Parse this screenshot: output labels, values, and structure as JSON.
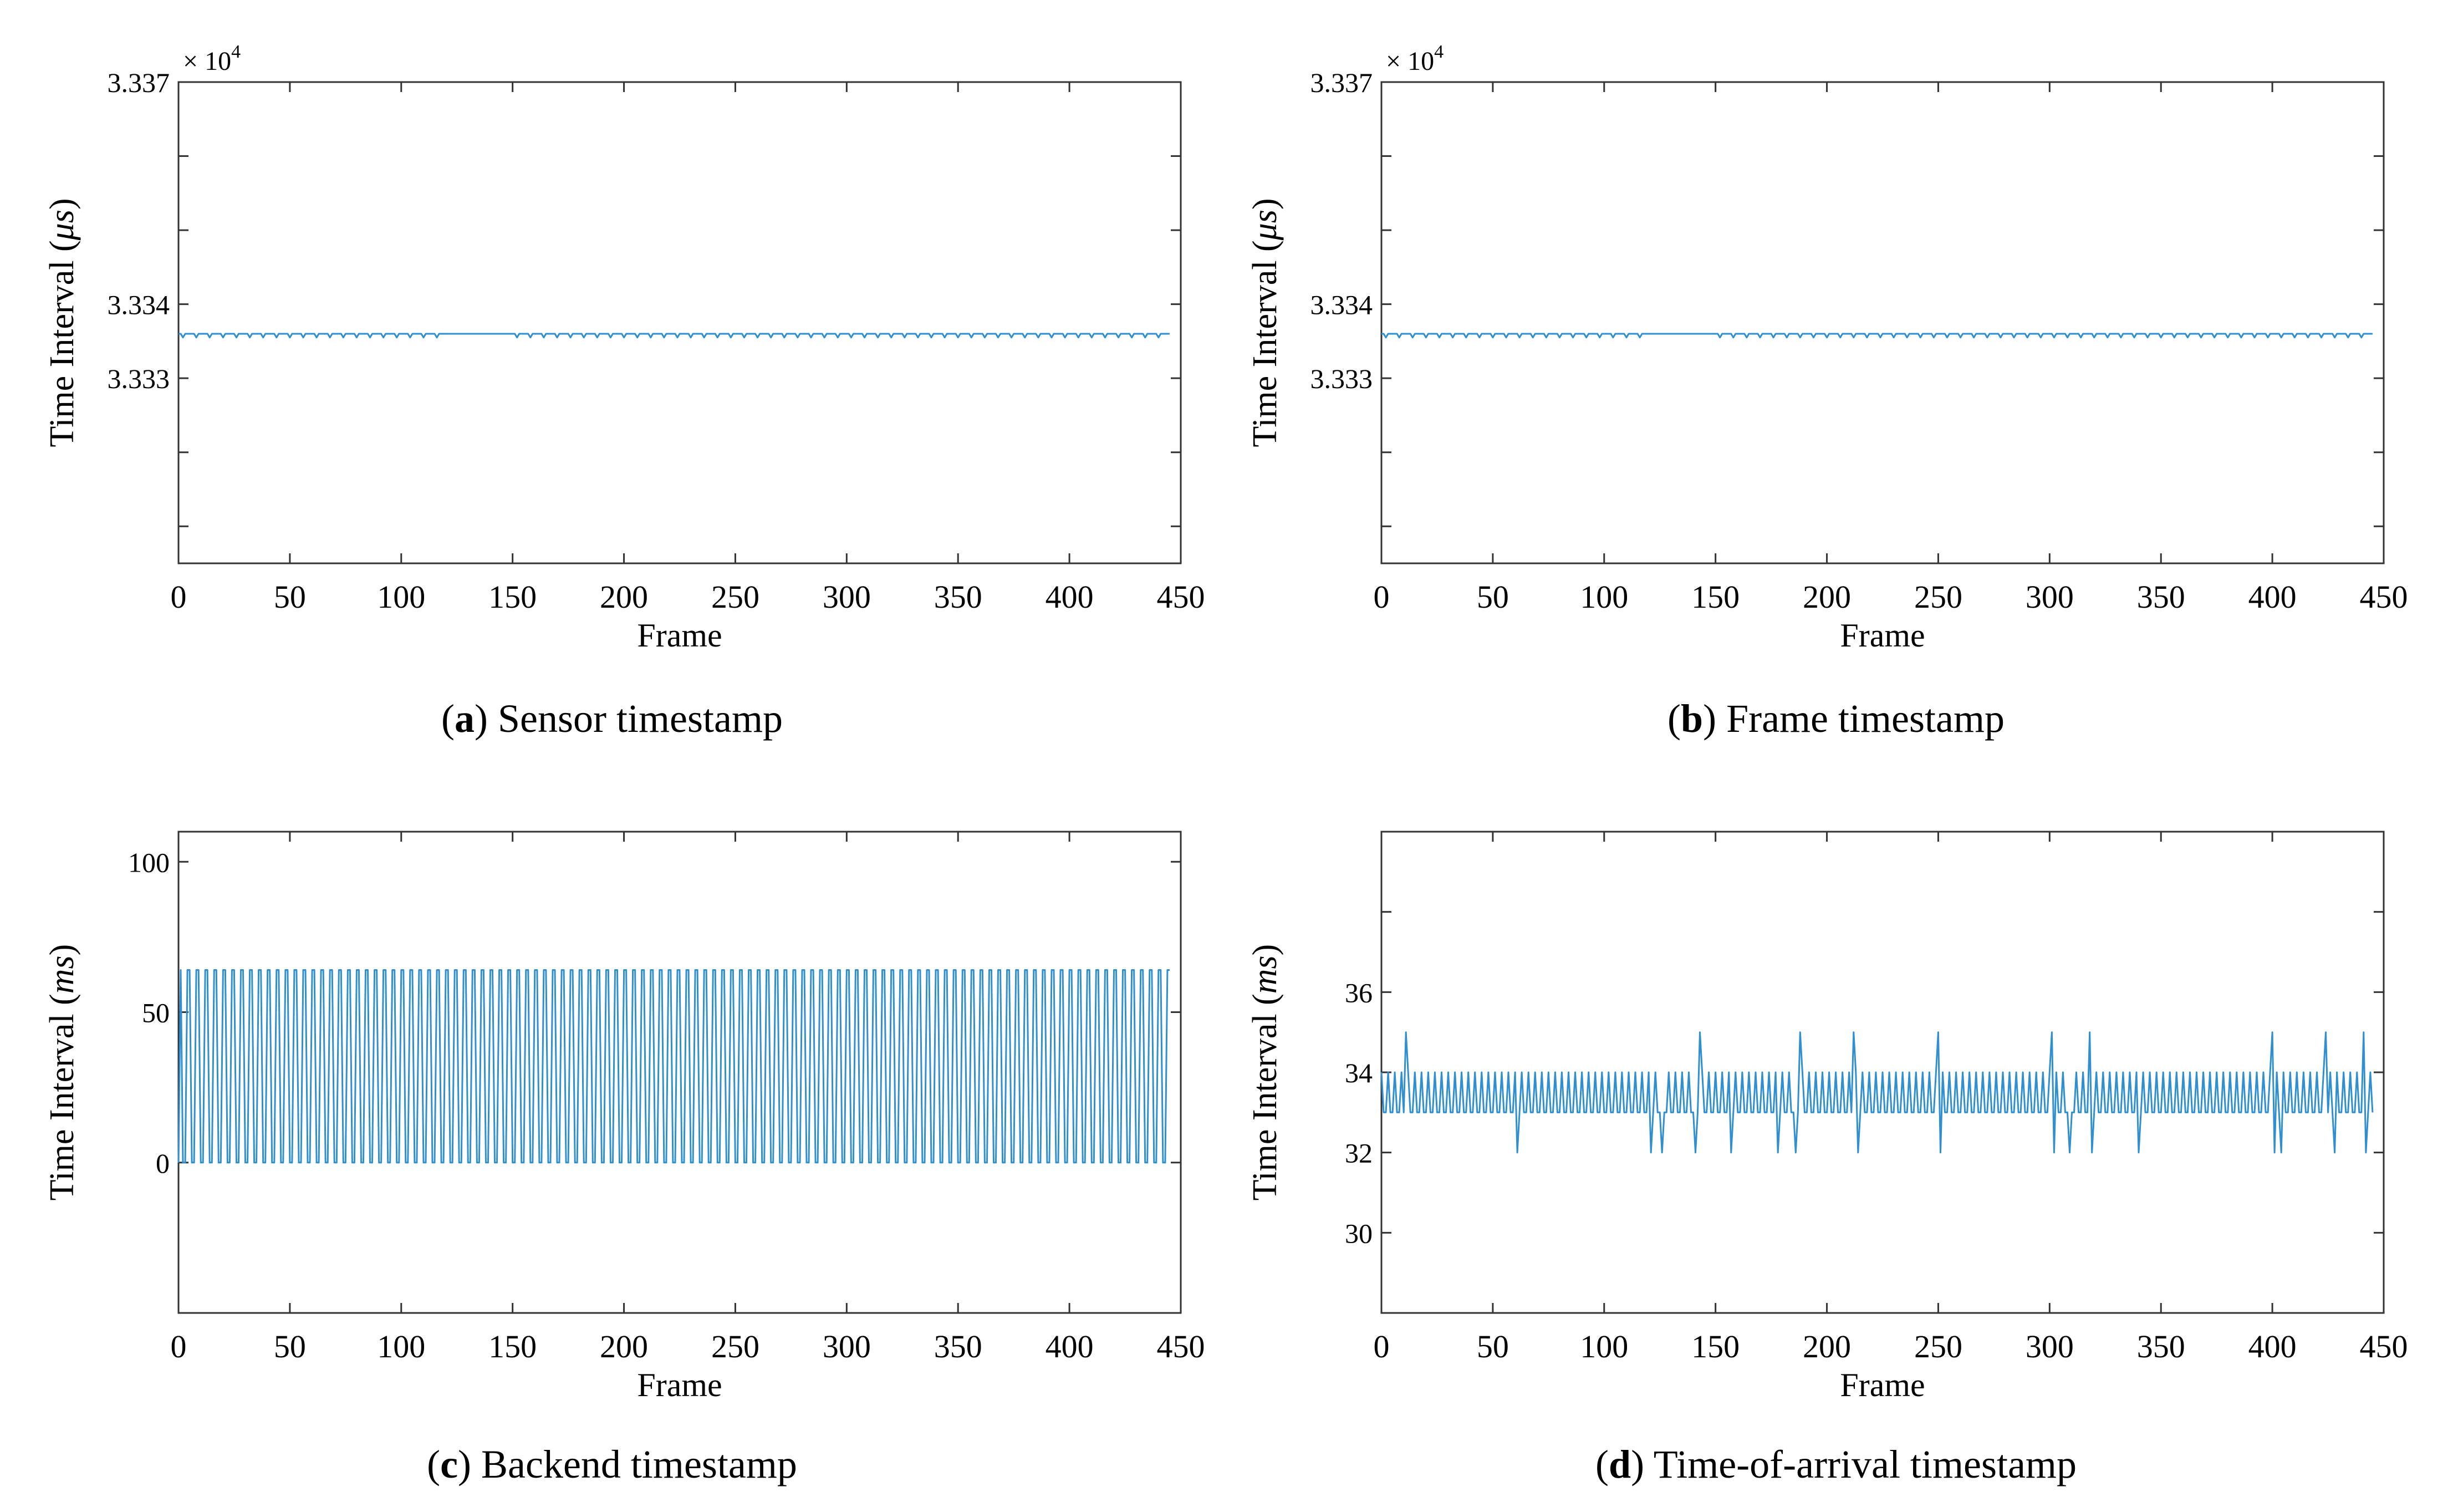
{
  "line_color": "#2f8fd0",
  "chart_data": [
    {
      "id": "a",
      "type": "line",
      "caption_letter": "a",
      "caption_text": "Sensor timestamp",
      "xlabel": "Frame",
      "ylabel_prefix": "Time Interval (",
      "ylabel_unit": "μs",
      "ylabel_suffix": ")",
      "exponent": "× 10",
      "exponent_power": "4",
      "xlim": [
        0,
        450
      ],
      "xticks": [
        0,
        50,
        100,
        150,
        200,
        250,
        300,
        350,
        400,
        450
      ],
      "ylim": [
        3.3305,
        3.337
      ],
      "yticks": [
        3.333,
        3.334,
        3.337
      ],
      "ytick_labels": [
        "3.333",
        "3.334",
        "3.337"
      ],
      "yminor": [
        3.331,
        3.332,
        3.335,
        3.336
      ],
      "pattern": "sensor",
      "n": 445,
      "base_value": 3.3336,
      "dip_value": 3.33355
    },
    {
      "id": "b",
      "type": "line",
      "caption_letter": "b",
      "caption_text": "Frame timestamp",
      "xlabel": "Frame",
      "ylabel_prefix": "Time Interval (",
      "ylabel_unit": "μs",
      "ylabel_suffix": ")",
      "exponent": "× 10",
      "exponent_power": "4",
      "xlim": [
        0,
        450
      ],
      "xticks": [
        0,
        50,
        100,
        150,
        200,
        250,
        300,
        350,
        400,
        450
      ],
      "ylim": [
        3.3305,
        3.337
      ],
      "yticks": [
        3.333,
        3.334,
        3.337
      ],
      "ytick_labels": [
        "3.333",
        "3.334",
        "3.337"
      ],
      "yminor": [
        3.331,
        3.332,
        3.335,
        3.336
      ],
      "pattern": "sensor",
      "n": 445,
      "base_value": 3.3336,
      "dip_value": 3.33355
    },
    {
      "id": "c",
      "type": "line",
      "caption_letter": "c",
      "caption_text": "Backend timestamp",
      "xlabel": "Frame",
      "ylabel_prefix": "Time Interval (",
      "ylabel_unit": "ms",
      "ylabel_suffix": ")",
      "exponent": "",
      "exponent_power": "",
      "xlim": [
        0,
        450
      ],
      "xticks": [
        0,
        50,
        100,
        150,
        200,
        250,
        300,
        350,
        400,
        450
      ],
      "ylim": [
        -50,
        110
      ],
      "yticks": [
        0,
        50,
        100
      ],
      "ytick_labels": [
        "0",
        "50",
        "100"
      ],
      "yminor": [],
      "pattern": "backend",
      "n": 445,
      "high_value": 64,
      "low_value": 0
    },
    {
      "id": "d",
      "type": "line",
      "caption_letter": "d",
      "caption_text": "Time-of-arrival timestamp",
      "xlabel": "Frame",
      "ylabel_prefix": "Time Interval (",
      "ylabel_unit": "ms",
      "ylabel_suffix": ")",
      "exponent": "",
      "exponent_power": "",
      "xlim": [
        0,
        450
      ],
      "xticks": [
        0,
        50,
        100,
        150,
        200,
        250,
        300,
        350,
        400,
        450
      ],
      "ylim": [
        28,
        40
      ],
      "yticks": [
        30,
        32,
        34,
        36
      ],
      "ytick_labels": [
        "30",
        "32",
        "34",
        "36"
      ],
      "yminor": [
        38
      ],
      "pattern": "arrival",
      "n": 445,
      "high_value": 34,
      "low_value": 33,
      "spikes_up": [
        11,
        143,
        188,
        212,
        250,
        301,
        318,
        400,
        424,
        441
      ],
      "spikes_down": [
        61,
        121,
        126,
        141,
        157,
        178,
        186,
        214,
        251,
        302,
        309,
        319,
        340,
        401,
        404,
        428,
        442
      ]
    }
  ]
}
